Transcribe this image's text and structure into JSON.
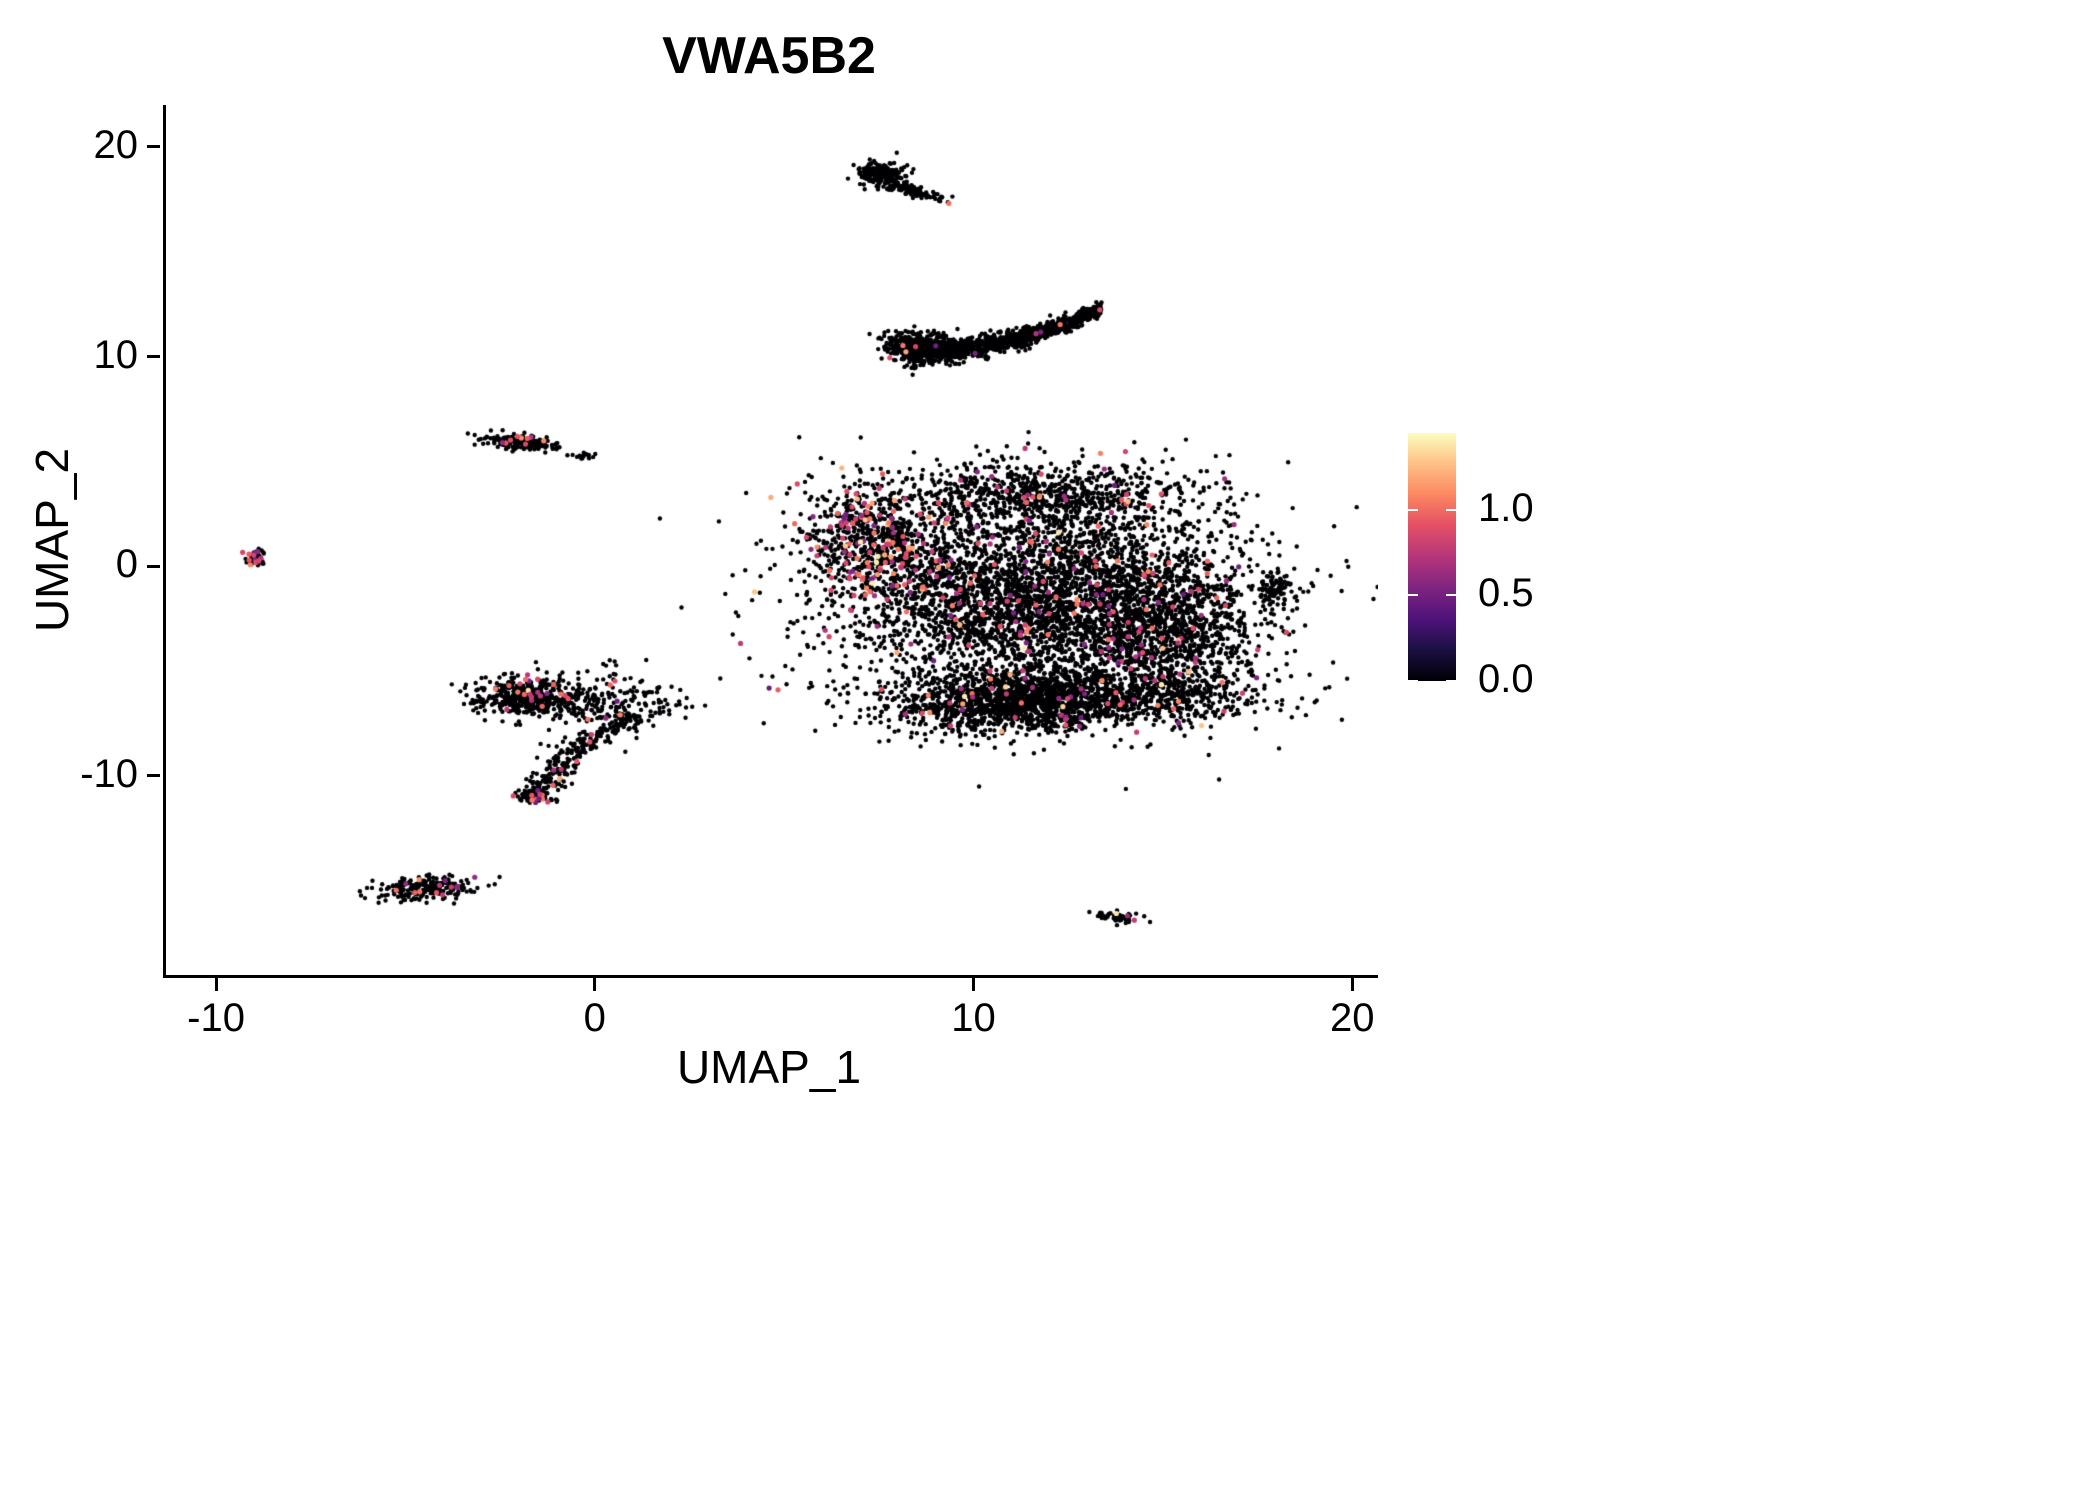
{
  "chart_data": {
    "type": "scatter",
    "title": "VWA5B2",
    "xlabel": "UMAP_1",
    "ylabel": "UMAP_2",
    "xlim": [
      -11.4,
      20.6
    ],
    "ylim": [
      -19.5,
      22.0
    ],
    "grid": false,
    "x_ticks": [
      {
        "value": -10,
        "label": "-10"
      },
      {
        "value": 0,
        "label": "0"
      },
      {
        "value": 10,
        "label": "10"
      },
      {
        "value": 20,
        "label": "20"
      }
    ],
    "y_ticks": [
      {
        "value": -10,
        "label": "-10"
      },
      {
        "value": 0,
        "label": "0"
      },
      {
        "value": 10,
        "label": "10"
      },
      {
        "value": 20,
        "label": "20"
      }
    ],
    "point_color_zero": "#000004",
    "point_radius": 2.2,
    "expr_point_radius": 2.6,
    "seed": 42,
    "colorbar": {
      "position": "right",
      "colormap": "magma",
      "domain": [
        0,
        1.45
      ],
      "tick_labels": [
        {
          "value": 1.0,
          "label": "1.0"
        },
        {
          "value": 0.5,
          "label": "0.5"
        },
        {
          "value": 0.0,
          "label": "0.0"
        }
      ],
      "gradient_stops": [
        {
          "t": 0.0,
          "color": "#000004"
        },
        {
          "t": 0.13,
          "color": "#1c1044"
        },
        {
          "t": 0.25,
          "color": "#4f127b"
        },
        {
          "t": 0.38,
          "color": "#812581"
        },
        {
          "t": 0.5,
          "color": "#b5367a"
        },
        {
          "t": 0.63,
          "color": "#e55064"
        },
        {
          "t": 0.75,
          "color": "#fb8761"
        },
        {
          "t": 0.88,
          "color": "#fec287"
        },
        {
          "t": 1.0,
          "color": "#fcfdbf"
        }
      ]
    },
    "clusters": [
      {
        "name": "top-small-head",
        "type": "gauss",
        "n": 180,
        "cx": 7.5,
        "cy": 18.7,
        "sx": 0.35,
        "sy": 0.28,
        "rot": -20,
        "expr_frac": 0.02
      },
      {
        "name": "top-small-tail",
        "type": "gauss",
        "n": 120,
        "cx": 8.2,
        "cy": 17.95,
        "sx": 0.6,
        "sy": 0.12,
        "rot": -28,
        "expr_frac": 0.01
      },
      {
        "name": "crescent-left",
        "type": "gauss",
        "n": 380,
        "cx": 8.5,
        "cy": 10.5,
        "sx": 0.55,
        "sy": 0.33,
        "rot": -8,
        "expr_frac": 0.008
      },
      {
        "name": "crescent-arc",
        "type": "curve",
        "n": 1050,
        "x0": 8.0,
        "x1": 13.3,
        "a": 10.15,
        "b": 0.075,
        "p": 2.0,
        "jitter": 0.3,
        "expr_frac": 0.008
      },
      {
        "name": "central-main",
        "type": "gauss",
        "n": 3400,
        "cx": 11.8,
        "cy": -1.3,
        "sx": 2.6,
        "sy": 2.2,
        "rot": 0,
        "expr_frac": 0.035
      },
      {
        "name": "central-bottom-band",
        "type": "gauss",
        "n": 1600,
        "cx": 11.2,
        "cy": -6.5,
        "sx": 1.7,
        "sy": 0.75,
        "rot": 3,
        "expr_frac": 0.02
      },
      {
        "name": "central-top-lobe",
        "type": "gauss",
        "n": 800,
        "cx": 11.6,
        "cy": 3.3,
        "sx": 2.0,
        "sy": 0.85,
        "rot": 0,
        "expr_frac": 0.03
      },
      {
        "name": "central-left-hotspot",
        "type": "gauss",
        "n": 650,
        "cx": 7.3,
        "cy": 1.2,
        "sx": 0.85,
        "sy": 1.55,
        "rot": 12,
        "expr_frac": 0.22,
        "expr_boost": true
      },
      {
        "name": "central-right-lobe",
        "type": "gauss",
        "n": 700,
        "cx": 15.1,
        "cy": -3.2,
        "sx": 1.15,
        "sy": 1.6,
        "rot": 0,
        "expr_frac": 0.05
      },
      {
        "name": "central-right-bottom",
        "type": "gauss",
        "n": 380,
        "cx": 14.9,
        "cy": -6.2,
        "sx": 1.3,
        "sy": 0.6,
        "rot": -5,
        "expr_frac": 0.05
      },
      {
        "name": "central-halo",
        "type": "gauss",
        "n": 600,
        "cx": 11.5,
        "cy": -2.8,
        "sx": 3.2,
        "sy": 2.6,
        "rot": 0,
        "expr_frac": 0.04
      },
      {
        "name": "left-mid",
        "type": "gauss",
        "n": 170,
        "cx": -1.95,
        "cy": 5.9,
        "sx": 0.5,
        "sy": 0.17,
        "rot": -10,
        "expr_frac": 0.12
      },
      {
        "name": "left-mid-satellite",
        "type": "gauss",
        "n": 14,
        "cx": -0.35,
        "cy": 5.25,
        "sx": 0.14,
        "sy": 0.09,
        "rot": 0,
        "expr_frac": 0
      },
      {
        "name": "far-left-tiny",
        "type": "gauss",
        "n": 45,
        "cx": -9.05,
        "cy": 0.45,
        "sx": 0.16,
        "sy": 0.22,
        "rot": 0,
        "expr_frac": 0.25
      },
      {
        "name": "hook-dense",
        "type": "gauss",
        "n": 460,
        "cx": -1.9,
        "cy": -6.15,
        "sx": 0.62,
        "sy": 0.45,
        "rot": 0,
        "expr_frac": 0.04
      },
      {
        "name": "hook-scatter",
        "type": "gauss",
        "n": 230,
        "cx": 0.3,
        "cy": -6.5,
        "sx": 1.0,
        "sy": 0.8,
        "rot": 0,
        "expr_frac": 0.02
      },
      {
        "name": "hook-tail",
        "type": "curveY",
        "n": 270,
        "y0": -11.3,
        "y1": -7.0,
        "a": -1.65,
        "b": 2.55,
        "p": 1.6,
        "jitter": 0.27,
        "expr_frac": 0.02
      },
      {
        "name": "hook-tail-tip",
        "type": "gauss",
        "n": 28,
        "cx": -1.68,
        "cy": -11.05,
        "sx": 0.22,
        "sy": 0.14,
        "rot": -15,
        "expr_frac": 0.4
      },
      {
        "name": "bottom-left-small",
        "type": "gauss",
        "n": 230,
        "cx": -4.55,
        "cy": -15.35,
        "sx": 0.68,
        "sy": 0.26,
        "rot": 6,
        "expr_frac": 0.06
      },
      {
        "name": "right-small",
        "type": "gauss",
        "n": 70,
        "cx": 17.85,
        "cy": -1.1,
        "sx": 0.22,
        "sy": 0.45,
        "rot": 10,
        "expr_frac": 0.02
      },
      {
        "name": "bottom-right-tiny",
        "type": "gauss",
        "n": 48,
        "cx": 13.75,
        "cy": -16.75,
        "sx": 0.3,
        "sy": 0.13,
        "rot": -20,
        "expr_frac": 0.18
      }
    ]
  }
}
